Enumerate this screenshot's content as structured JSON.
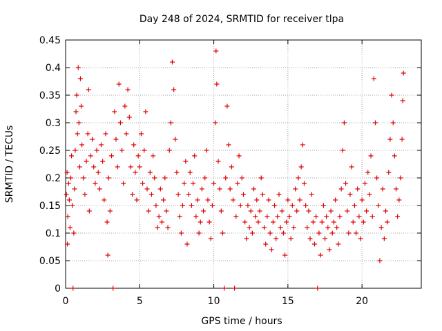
{
  "chart_data": {
    "type": "scatter",
    "title": "Day 248 of 2024, SRMTID for receiver tlpa",
    "xlabel": "GPS time / hours",
    "ylabel": "SRMTID / TECUs",
    "xlim": [
      0,
      24
    ],
    "ylim": [
      0,
      0.45
    ],
    "xticks": [
      0,
      5,
      10,
      15,
      20
    ],
    "xtick_labels": [
      "0",
      "5",
      "10",
      "15",
      "20"
    ],
    "yticks": [
      0,
      0.05,
      0.1,
      0.15,
      0.2,
      0.25,
      0.3,
      0.35,
      0.4,
      0.45
    ],
    "ytick_labels": [
      "0",
      "0.05",
      "0.1",
      "0.15",
      "0.2",
      "0.25",
      "0.3",
      "0.35",
      "0.4",
      "0.45"
    ],
    "grid": true,
    "marker": "+",
    "colors": {
      "series": "#e00000",
      "grid": "#a0a0a0",
      "axes": "#000000"
    },
    "series": [
      {
        "points": [
          [
            0.05,
            0.17
          ],
          [
            0.1,
            0.21
          ],
          [
            0.12,
            0.08
          ],
          [
            0.15,
            0.13
          ],
          [
            0.2,
            0.19
          ],
          [
            0.25,
            0.16
          ],
          [
            0.3,
            0.11
          ],
          [
            0.35,
            0.2
          ],
          [
            0.4,
            0.24
          ],
          [
            0.45,
            0.15
          ],
          [
            0.5,
            0.0
          ],
          [
            0.55,
            0.1
          ],
          [
            0.6,
            0.18
          ],
          [
            0.65,
            0.25
          ],
          [
            0.7,
            0.32
          ],
          [
            0.75,
            0.35
          ],
          [
            0.8,
            0.28
          ],
          [
            0.85,
            0.4
          ],
          [
            0.9,
            0.3
          ],
          [
            0.95,
            0.22
          ],
          [
            1.0,
            0.38
          ],
          [
            1.05,
            0.33
          ],
          [
            1.1,
            0.26
          ],
          [
            1.2,
            0.2
          ],
          [
            1.3,
            0.17
          ],
          [
            1.4,
            0.23
          ],
          [
            1.5,
            0.28
          ],
          [
            1.55,
            0.36
          ],
          [
            1.6,
            0.14
          ],
          [
            1.7,
            0.24
          ],
          [
            1.8,
            0.27
          ],
          [
            1.9,
            0.22
          ],
          [
            2.0,
            0.19
          ],
          [
            2.1,
            0.25
          ],
          [
            2.2,
            0.21
          ],
          [
            2.3,
            0.18
          ],
          [
            2.4,
            0.26
          ],
          [
            2.5,
            0.23
          ],
          [
            2.6,
            0.16
          ],
          [
            2.7,
            0.28
          ],
          [
            2.8,
            0.12
          ],
          [
            2.85,
            0.06
          ],
          [
            2.9,
            0.2
          ],
          [
            3.0,
            0.14
          ],
          [
            3.1,
            0.24
          ],
          [
            3.2,
            0.0
          ],
          [
            3.3,
            0.32
          ],
          [
            3.4,
            0.27
          ],
          [
            3.5,
            0.22
          ],
          [
            3.6,
            0.37
          ],
          [
            3.7,
            0.3
          ],
          [
            3.8,
            0.25
          ],
          [
            3.9,
            0.19
          ],
          [
            4.0,
            0.33
          ],
          [
            4.1,
            0.28
          ],
          [
            4.2,
            0.36
          ],
          [
            4.3,
            0.31
          ],
          [
            4.4,
            0.22
          ],
          [
            4.5,
            0.17
          ],
          [
            4.6,
            0.26
          ],
          [
            4.7,
            0.21
          ],
          [
            4.8,
            0.16
          ],
          [
            4.9,
            0.24
          ],
          [
            5.0,
            0.22
          ],
          [
            5.1,
            0.28
          ],
          [
            5.2,
            0.19
          ],
          [
            5.3,
            0.25
          ],
          [
            5.4,
            0.32
          ],
          [
            5.5,
            0.18
          ],
          [
            5.6,
            0.14
          ],
          [
            5.7,
            0.21
          ],
          [
            5.8,
            0.17
          ],
          [
            5.9,
            0.24
          ],
          [
            6.0,
            0.2
          ],
          [
            6.1,
            0.15
          ],
          [
            6.2,
            0.11
          ],
          [
            6.3,
            0.13
          ],
          [
            6.4,
            0.18
          ],
          [
            6.5,
            0.12
          ],
          [
            6.6,
            0.16
          ],
          [
            6.7,
            0.2
          ],
          [
            6.8,
            0.14
          ],
          [
            6.9,
            0.11
          ],
          [
            7.0,
            0.25
          ],
          [
            7.1,
            0.3
          ],
          [
            7.2,
            0.41
          ],
          [
            7.3,
            0.36
          ],
          [
            7.4,
            0.27
          ],
          [
            7.5,
            0.21
          ],
          [
            7.6,
            0.17
          ],
          [
            7.7,
            0.13
          ],
          [
            7.8,
            0.1
          ],
          [
            7.9,
            0.15
          ],
          [
            8.0,
            0.19
          ],
          [
            8.1,
            0.23
          ],
          [
            8.2,
            0.08
          ],
          [
            8.3,
            0.17
          ],
          [
            8.4,
            0.21
          ],
          [
            8.5,
            0.15
          ],
          [
            8.6,
            0.19
          ],
          [
            8.7,
            0.24
          ],
          [
            8.8,
            0.13
          ],
          [
            8.9,
            0.16
          ],
          [
            9.0,
            0.1
          ],
          [
            9.1,
            0.12
          ],
          [
            9.2,
            0.18
          ],
          [
            9.3,
            0.14
          ],
          [
            9.4,
            0.2
          ],
          [
            9.5,
            0.25
          ],
          [
            9.6,
            0.16
          ],
          [
            9.7,
            0.12
          ],
          [
            9.8,
            0.09
          ],
          [
            9.9,
            0.15
          ],
          [
            10.0,
            0.19
          ],
          [
            10.1,
            0.3
          ],
          [
            10.15,
            0.43
          ],
          [
            10.2,
            0.37
          ],
          [
            10.3,
            0.23
          ],
          [
            10.4,
            0.18
          ],
          [
            10.5,
            0.14
          ],
          [
            10.6,
            0.1
          ],
          [
            10.7,
            0.0
          ],
          [
            10.8,
            0.2
          ],
          [
            10.9,
            0.33
          ],
          [
            11.0,
            0.26
          ],
          [
            11.1,
            0.18
          ],
          [
            11.2,
            0.22
          ],
          [
            11.3,
            0.16
          ],
          [
            11.4,
            0.0
          ],
          [
            11.5,
            0.13
          ],
          [
            11.6,
            0.19
          ],
          [
            11.7,
            0.24
          ],
          [
            11.8,
            0.15
          ],
          [
            11.9,
            0.2
          ],
          [
            12.0,
            0.17
          ],
          [
            12.1,
            0.12
          ],
          [
            12.2,
            0.09
          ],
          [
            12.3,
            0.15
          ],
          [
            12.4,
            0.11
          ],
          [
            12.5,
            0.14
          ],
          [
            12.6,
            0.1
          ],
          [
            12.7,
            0.18
          ],
          [
            12.8,
            0.13
          ],
          [
            12.9,
            0.16
          ],
          [
            13.0,
            0.12
          ],
          [
            13.1,
            0.14
          ],
          [
            13.2,
            0.2
          ],
          [
            13.3,
            0.17
          ],
          [
            13.4,
            0.11
          ],
          [
            13.5,
            0.08
          ],
          [
            13.6,
            0.13
          ],
          [
            13.7,
            0.16
          ],
          [
            13.8,
            0.1
          ],
          [
            13.9,
            0.07
          ],
          [
            14.0,
            0.12
          ],
          [
            14.1,
            0.15
          ],
          [
            14.2,
            0.09
          ],
          [
            14.3,
            0.13
          ],
          [
            14.4,
            0.17
          ],
          [
            14.5,
            0.11
          ],
          [
            14.6,
            0.14
          ],
          [
            14.7,
            0.1
          ],
          [
            14.8,
            0.06
          ],
          [
            14.9,
            0.12
          ],
          [
            15.0,
            0.16
          ],
          [
            15.1,
            0.13
          ],
          [
            15.2,
            0.09
          ],
          [
            15.3,
            0.15
          ],
          [
            15.4,
            0.11
          ],
          [
            15.5,
            0.18
          ],
          [
            15.6,
            0.14
          ],
          [
            15.7,
            0.2
          ],
          [
            15.8,
            0.16
          ],
          [
            15.9,
            0.22
          ],
          [
            16.0,
            0.26
          ],
          [
            16.1,
            0.19
          ],
          [
            16.2,
            0.15
          ],
          [
            16.3,
            0.11
          ],
          [
            16.4,
            0.14
          ],
          [
            16.5,
            0.09
          ],
          [
            16.6,
            0.17
          ],
          [
            16.7,
            0.12
          ],
          [
            16.8,
            0.08
          ],
          [
            16.9,
            0.13
          ],
          [
            17.0,
            0.0
          ],
          [
            17.1,
            0.1
          ],
          [
            17.2,
            0.06
          ],
          [
            17.3,
            0.12
          ],
          [
            17.4,
            0.15
          ],
          [
            17.5,
            0.09
          ],
          [
            17.6,
            0.13
          ],
          [
            17.7,
            0.11
          ],
          [
            17.8,
            0.07
          ],
          [
            17.9,
            0.14
          ],
          [
            18.0,
            0.1
          ],
          [
            18.1,
            0.12
          ],
          [
            18.2,
            0.16
          ],
          [
            18.3,
            0.11
          ],
          [
            18.4,
            0.08
          ],
          [
            18.5,
            0.13
          ],
          [
            18.6,
            0.18
          ],
          [
            18.7,
            0.25
          ],
          [
            18.8,
            0.3
          ],
          [
            18.9,
            0.19
          ],
          [
            19.0,
            0.14
          ],
          [
            19.1,
            0.1
          ],
          [
            19.2,
            0.17
          ],
          [
            19.3,
            0.22
          ],
          [
            19.4,
            0.12
          ],
          [
            19.5,
            0.15
          ],
          [
            19.6,
            0.1
          ],
          [
            19.7,
            0.18
          ],
          [
            19.8,
            0.13
          ],
          [
            19.9,
            0.09
          ],
          [
            20.0,
            0.16
          ],
          [
            20.1,
            0.12
          ],
          [
            20.2,
            0.19
          ],
          [
            20.3,
            0.14
          ],
          [
            20.4,
            0.21
          ],
          [
            20.5,
            0.17
          ],
          [
            20.6,
            0.24
          ],
          [
            20.7,
            0.13
          ],
          [
            20.8,
            0.38
          ],
          [
            20.9,
            0.3
          ],
          [
            21.0,
            0.2
          ],
          [
            21.1,
            0.15
          ],
          [
            21.2,
            0.05
          ],
          [
            21.3,
            0.11
          ],
          [
            21.4,
            0.18
          ],
          [
            21.5,
            0.09
          ],
          [
            21.6,
            0.14
          ],
          [
            21.7,
            0.12
          ],
          [
            21.8,
            0.21
          ],
          [
            21.9,
            0.27
          ],
          [
            22.0,
            0.35
          ],
          [
            22.1,
            0.3
          ],
          [
            22.2,
            0.24
          ],
          [
            22.3,
            0.18
          ],
          [
            22.4,
            0.13
          ],
          [
            22.5,
            0.16
          ],
          [
            22.6,
            0.2
          ],
          [
            22.7,
            0.27
          ],
          [
            22.75,
            0.34
          ],
          [
            22.8,
            0.39
          ]
        ]
      }
    ]
  }
}
